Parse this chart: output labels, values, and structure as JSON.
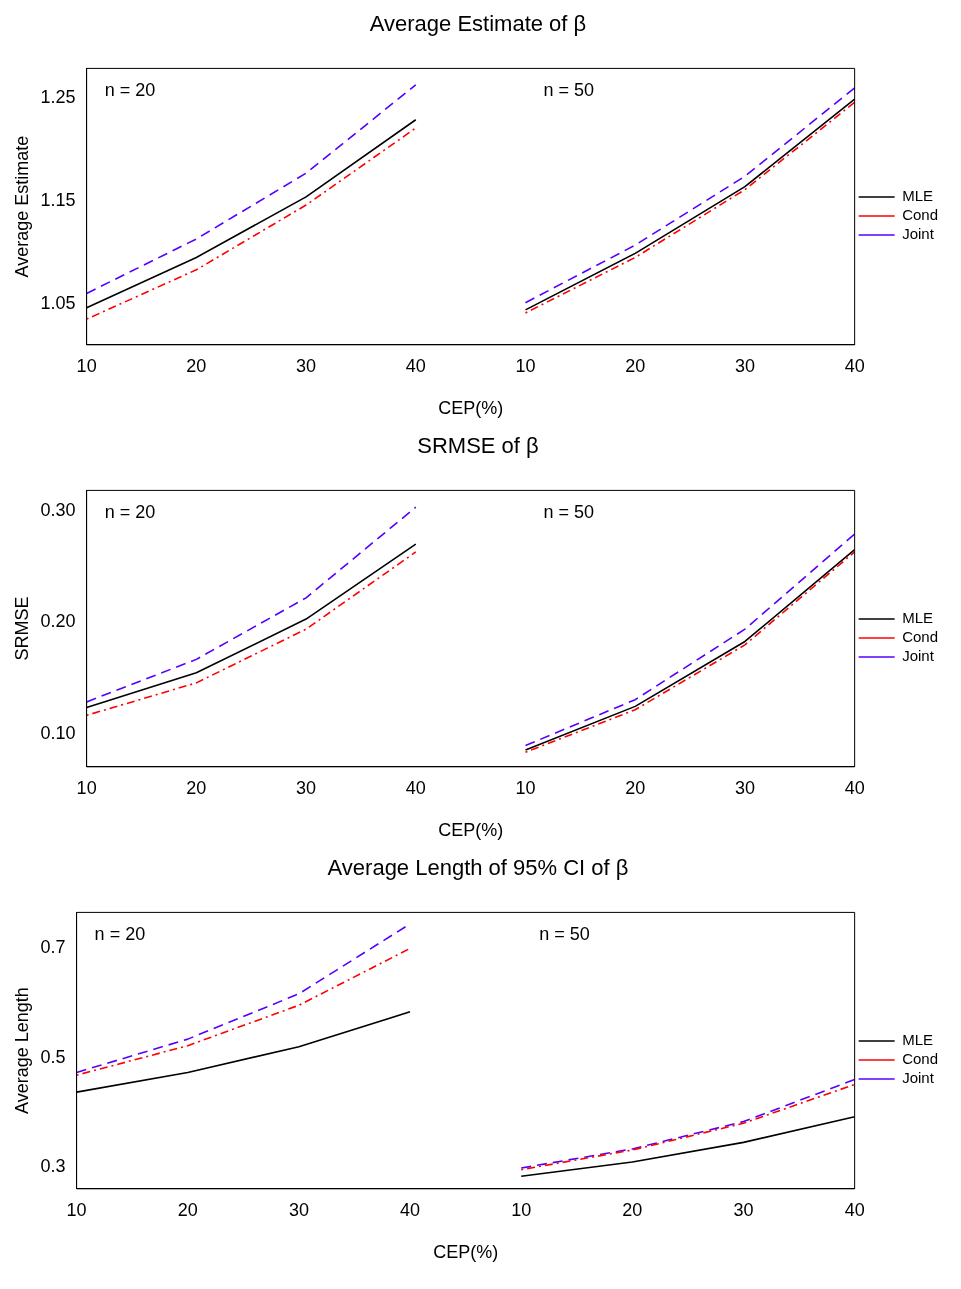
{
  "chart_data": [
    {
      "type": "line",
      "title": "Average Estimate of β",
      "xlabel": "CEP(%)",
      "ylabel": "Average Estimate",
      "categories": [
        "10",
        "20",
        "30",
        "40",
        "10",
        "20",
        "30",
        "40"
      ],
      "ylim": [
        1.01,
        1.279
      ],
      "yticks": [
        1.05,
        1.15,
        1.25
      ],
      "grid": false,
      "legend": "right",
      "annotations": [
        "n = 20",
        "n = 50"
      ],
      "series": [
        {
          "name": "MLE",
          "color": "#000000",
          "line_style": "solid",
          "values": [
            1.046,
            1.095,
            1.154,
            1.229,
            1.044,
            1.099,
            1.164,
            1.249
          ]
        },
        {
          "name": "Cond",
          "color": "#ff0000",
          "line_style": "dotted",
          "values": [
            1.035,
            1.083,
            1.146,
            1.221,
            1.041,
            1.095,
            1.161,
            1.246
          ]
        },
        {
          "name": "Joint",
          "color": "#5500ff",
          "line_style": "dashed",
          "values": [
            1.06,
            1.113,
            1.177,
            1.263,
            1.051,
            1.107,
            1.174,
            1.26
          ]
        }
      ]
    },
    {
      "type": "line",
      "title": "SRMSE of β",
      "xlabel": "CEP(%)",
      "ylabel": "SRMSE",
      "categories": [
        "10",
        "20",
        "30",
        "40",
        "10",
        "20",
        "30",
        "40"
      ],
      "ylim": [
        0.071,
        0.318
      ],
      "yticks": [
        {
          "value": 0.1,
          "label": "0.10"
        },
        {
          "value": 0.2,
          "label": "0.20"
        },
        {
          "value": 0.3,
          "label": "0.30"
        }
      ],
      "grid": false,
      "legend": "right",
      "annotations": [
        "n = 20",
        "n = 50"
      ],
      "series": [
        {
          "name": "MLE",
          "color": "#000000",
          "line_style": "solid",
          "values": [
            0.124,
            0.155,
            0.203,
            0.27,
            0.086,
            0.125,
            0.183,
            0.265
          ]
        },
        {
          "name": "Cond",
          "color": "#ff0000",
          "line_style": "dotted",
          "values": [
            0.117,
            0.146,
            0.194,
            0.263,
            0.084,
            0.122,
            0.18,
            0.263
          ]
        },
        {
          "name": "Joint",
          "color": "#5500ff",
          "line_style": "dashed",
          "values": [
            0.129,
            0.167,
            0.222,
            0.303,
            0.09,
            0.131,
            0.194,
            0.279
          ]
        }
      ]
    },
    {
      "type": "line",
      "title": "Average Length of 95% CI of β",
      "xlabel": "CEP(%)",
      "ylabel": "Average Length",
      "categories": [
        "10",
        "20",
        "30",
        "40",
        "10",
        "20",
        "30",
        "40"
      ],
      "ylim": [
        0.26,
        0.766
      ],
      "yticks": [
        0.3,
        0.5,
        0.7
      ],
      "grid": false,
      "legend": "right",
      "annotations": [
        "n = 20",
        "n = 50"
      ],
      "series": [
        {
          "name": "MLE",
          "color": "#000000",
          "line_style": "solid",
          "values": [
            0.437,
            0.473,
            0.52,
            0.584,
            0.283,
            0.309,
            0.345,
            0.392
          ]
        },
        {
          "name": "Cond",
          "color": "#ff0000",
          "line_style": "dotted",
          "values": [
            0.468,
            0.522,
            0.596,
            0.7,
            0.295,
            0.331,
            0.38,
            0.451
          ]
        },
        {
          "name": "Joint",
          "color": "#5500ff",
          "line_style": "dashed",
          "values": [
            0.473,
            0.534,
            0.617,
            0.745,
            0.298,
            0.333,
            0.383,
            0.46
          ]
        }
      ]
    }
  ]
}
